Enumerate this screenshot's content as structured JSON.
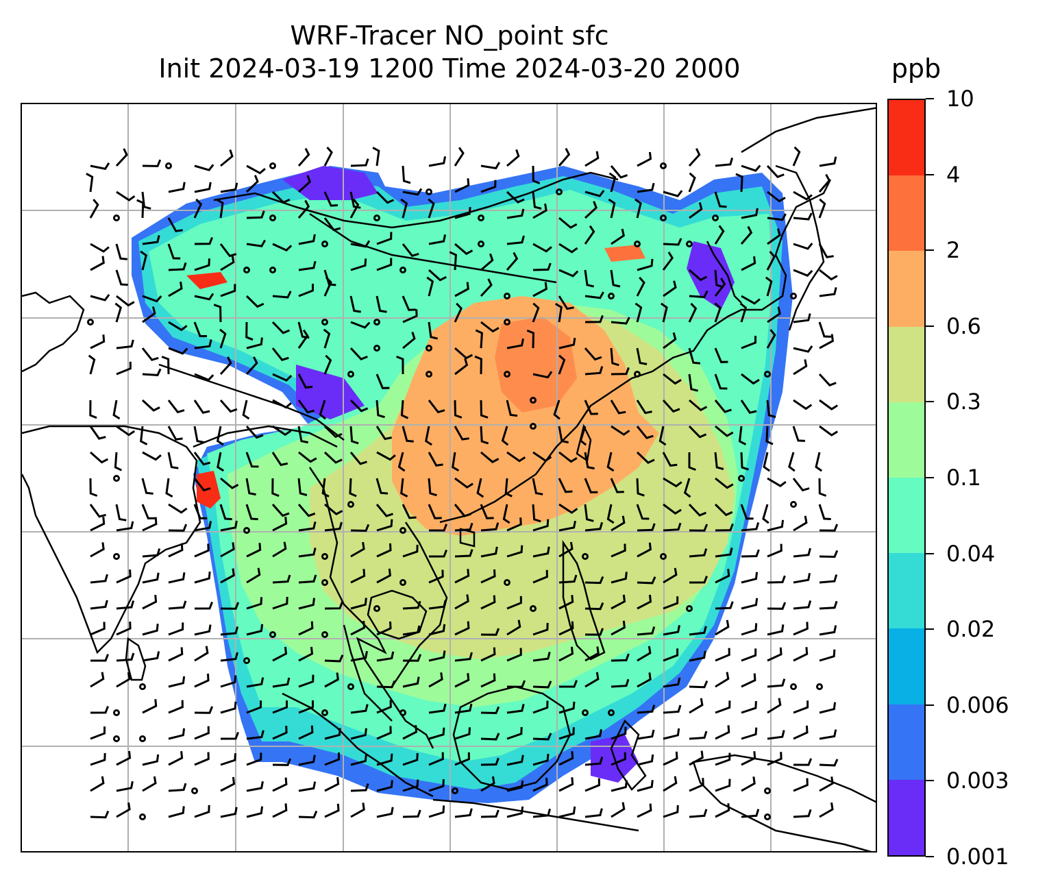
{
  "title": {
    "line1": "WRF-Tracer NO_point sfc",
    "line2": "Init 2024-03-19 1200 Time 2024-03-20 2000"
  },
  "colorbar": {
    "unit": "ppb",
    "levels": [
      "0.001",
      "0.003",
      "0.006",
      "0.02",
      "0.04",
      "0.1",
      "0.3",
      "0.6",
      "2",
      "4",
      "10"
    ],
    "colors": [
      "#6a2cf7",
      "#3574f4",
      "#08b0e6",
      "#35dcd6",
      "#66fbc0",
      "#9efb9a",
      "#cfe384",
      "#feae63",
      "#fd723c",
      "#f92c16"
    ]
  },
  "map": {
    "gridlines": true,
    "content": "filled concentration contours with wind barbs and coastlines",
    "land_color": "#ffffff",
    "coast_color": "#000000",
    "grid_color": "#b0b0b0"
  }
}
